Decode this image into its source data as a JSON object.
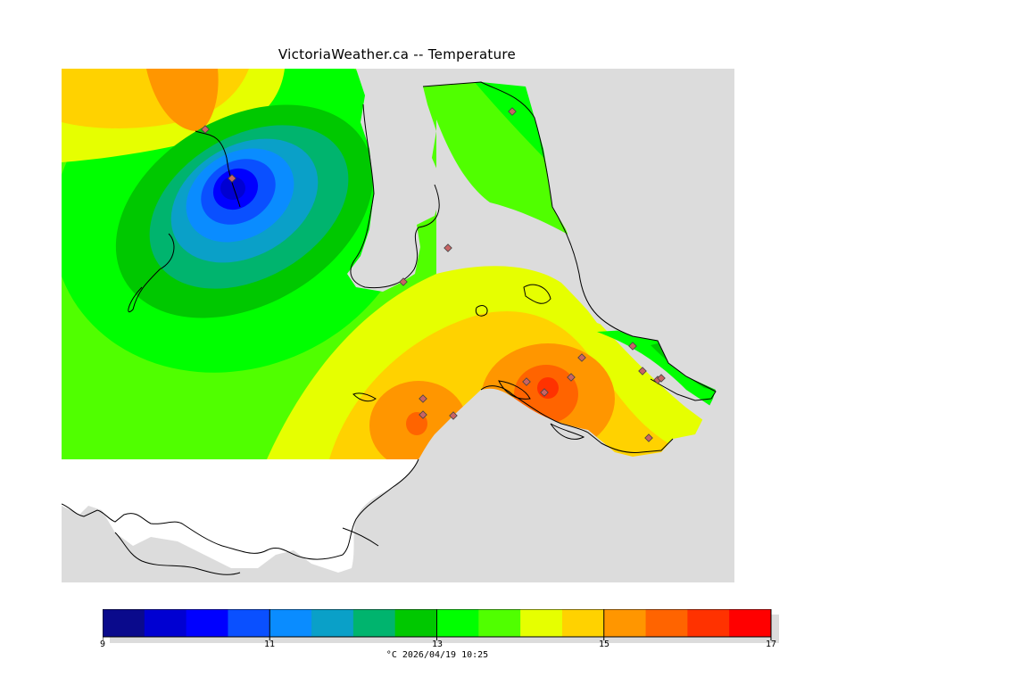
{
  "title": "VictoriaWeather.ca -- Temperature",
  "colors": {
    "levels": [
      "#0a0a8c",
      "#0000d2",
      "#0000ff",
      "#0a50ff",
      "#0a8cff",
      "#0aa0c8",
      "#00b46e",
      "#00c800",
      "#00ff00",
      "#50ff00",
      "#e6ff00",
      "#ffd200",
      "#ff9600",
      "#ff6400",
      "#ff3200",
      "#ff0000"
    ],
    "land_background": "#dcdcdc",
    "no_data_area": "#ffffff",
    "station_marker": "#c86464"
  },
  "colorbar": {
    "min": 9,
    "max": 17,
    "tick_labels": [
      "9",
      "11",
      "13",
      "15",
      "17"
    ],
    "unit_and_time": "°C  2026/04/19 10:25"
  }
}
